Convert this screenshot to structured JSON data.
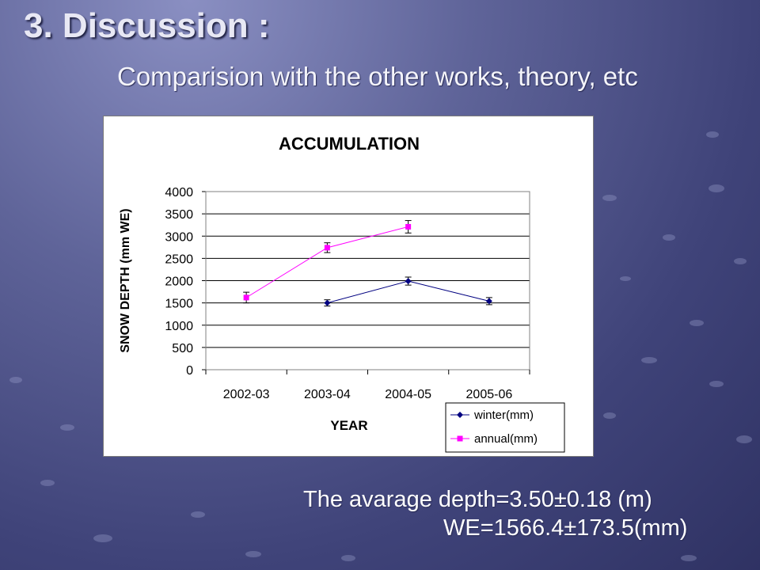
{
  "slide": {
    "title": "3. Discussion :",
    "subtitle": "Comparision with the other works, theory, etc",
    "note_line1": "The avarage depth=3.50±0.18 (m)",
    "note_line2": "WE=1566.4±173.5(mm)"
  },
  "chart_data": {
    "type": "line",
    "title": "ACCUMULATION",
    "xlabel": "YEAR",
    "ylabel": "SNOW DEPTH (mm WE)",
    "categories": [
      "2002-03",
      "2003-04",
      "2004-05",
      "2005-06"
    ],
    "ylim": [
      0,
      4000
    ],
    "yticks": [
      0,
      500,
      1000,
      1500,
      2000,
      2500,
      3000,
      3500,
      4000
    ],
    "grid": true,
    "legend_position": "bottom-right",
    "series": [
      {
        "name": "winter(mm)",
        "color": "#000080",
        "marker": "diamond",
        "values": [
          null,
          1500,
          1990,
          1540
        ],
        "error": [
          null,
          70,
          90,
          80
        ]
      },
      {
        "name": "annual(mm)",
        "color": "#ff00ff",
        "marker": "square",
        "values": [
          1620,
          2740,
          3210,
          null
        ],
        "error": [
          120,
          110,
          140,
          null
        ]
      }
    ]
  }
}
